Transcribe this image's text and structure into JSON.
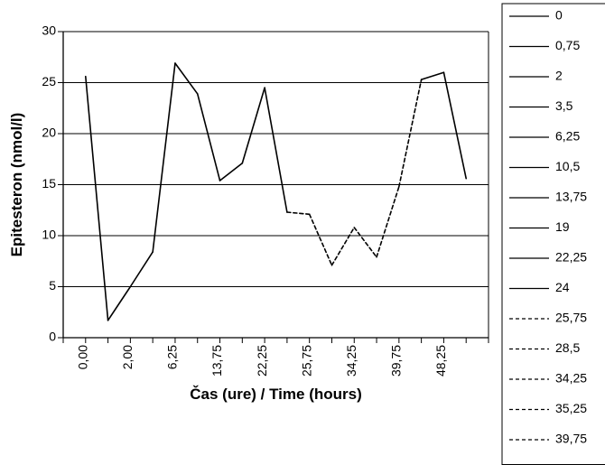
{
  "chart_data": {
    "type": "line",
    "title": "",
    "xlabel": "Čas (ure) / Time (hours)",
    "ylabel": "Epitesteron (nmol/l)",
    "ylim": [
      0,
      30
    ],
    "y_ticks": [
      "0",
      "5",
      "10",
      "15",
      "20",
      "25",
      "30"
    ],
    "x_tick_labels": [
      "0,00",
      "2,00",
      "6,25",
      "13,75",
      "22,25",
      "25,75",
      "34,25",
      "39,75",
      "48,25"
    ],
    "grid": true,
    "legend_position": "right",
    "series": [
      {
        "name": "0",
        "style": "solid",
        "x": [
          "0"
        ],
        "y": [
          25.6
        ]
      },
      {
        "name": "0,75",
        "style": "solid",
        "x": [
          "0,75"
        ],
        "y": [
          1.7
        ]
      },
      {
        "name": "2",
        "style": "solid",
        "x": [
          "2"
        ],
        "y": [
          5.0
        ]
      },
      {
        "name": "3,5",
        "style": "solid",
        "x": [
          "3,5"
        ],
        "y": [
          8.4
        ]
      },
      {
        "name": "6,25",
        "style": "solid",
        "x": [
          "6,25"
        ],
        "y": [
          26.9
        ]
      },
      {
        "name": "10,5",
        "style": "solid",
        "x": [
          "10,5"
        ],
        "y": [
          23.9
        ]
      },
      {
        "name": "13,75",
        "style": "solid",
        "x": [
          "13,75"
        ],
        "y": [
          15.4
        ]
      },
      {
        "name": "19",
        "style": "solid",
        "x": [
          "19"
        ],
        "y": [
          17.1
        ]
      },
      {
        "name": "22,25",
        "style": "solid",
        "x": [
          "22,25"
        ],
        "y": [
          24.5
        ]
      },
      {
        "name": "24",
        "style": "solid",
        "x": [
          "24"
        ],
        "y": [
          12.3
        ]
      },
      {
        "name": "25,75",
        "style": "dashed",
        "x": [
          "25,75"
        ],
        "y": [
          12.1
        ]
      },
      {
        "name": "28,5",
        "style": "dashed",
        "x": [
          "28,5"
        ],
        "y": [
          7.1
        ]
      },
      {
        "name": "34,25",
        "style": "dashed",
        "x": [
          "34,25"
        ],
        "y": [
          10.8
        ]
      },
      {
        "name": "35,25",
        "style": "dashed",
        "x": [
          "35,25"
        ],
        "y": [
          7.9
        ]
      },
      {
        "name": "39,75",
        "style": "dashed",
        "x": [
          "39,75"
        ],
        "y": [
          14.8
        ]
      }
    ],
    "tail_points": [
      {
        "style": "solid",
        "y": 25.3
      },
      {
        "style": "solid",
        "y": 26.0
      },
      {
        "style": "solid",
        "y": 15.6
      }
    ]
  }
}
